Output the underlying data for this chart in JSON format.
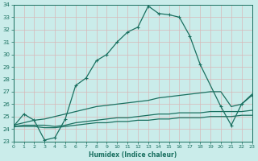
{
  "xlabel": "Humidex (Indice chaleur)",
  "xlim": [
    0,
    23
  ],
  "ylim": [
    23,
    34
  ],
  "xticks": [
    0,
    1,
    2,
    3,
    4,
    5,
    6,
    7,
    8,
    9,
    10,
    11,
    12,
    13,
    14,
    15,
    16,
    17,
    18,
    19,
    20,
    21,
    22,
    23
  ],
  "yticks": [
    23,
    24,
    25,
    26,
    27,
    28,
    29,
    30,
    31,
    32,
    33,
    34
  ],
  "bg_color": "#caecea",
  "line_color": "#1a7060",
  "grid_color": "#b0d8d4",
  "line1_x": [
    0,
    1,
    2,
    3,
    4,
    5,
    6,
    7,
    8,
    9,
    10,
    11,
    12,
    13,
    14,
    15,
    16,
    17,
    18,
    20,
    21,
    22,
    23
  ],
  "line1_y": [
    24.2,
    25.2,
    24.7,
    23.1,
    23.3,
    24.8,
    27.5,
    28.1,
    29.5,
    30.0,
    31.0,
    31.8,
    32.2,
    33.9,
    33.3,
    33.2,
    33.0,
    31.5,
    29.2,
    25.8,
    24.3,
    26.0,
    26.7
  ],
  "line2_x": [
    0,
    1,
    2,
    3,
    4,
    5,
    6,
    7,
    8,
    9,
    10,
    11,
    12,
    13,
    14,
    15,
    16,
    17,
    18,
    19,
    20,
    21,
    22,
    23
  ],
  "line2_y": [
    24.3,
    24.5,
    24.7,
    24.8,
    25.0,
    25.2,
    25.4,
    25.6,
    25.8,
    25.9,
    26.0,
    26.1,
    26.2,
    26.3,
    26.5,
    26.6,
    26.7,
    26.8,
    26.9,
    27.0,
    27.0,
    25.8,
    26.0,
    26.8
  ],
  "line3_x": [
    0,
    1,
    2,
    3,
    4,
    5,
    6,
    7,
    8,
    9,
    10,
    11,
    12,
    13,
    14,
    15,
    16,
    17,
    18,
    19,
    20,
    21,
    22,
    23
  ],
  "line3_y": [
    24.2,
    24.3,
    24.3,
    24.3,
    24.2,
    24.3,
    24.5,
    24.6,
    24.7,
    24.8,
    24.9,
    24.9,
    25.0,
    25.1,
    25.2,
    25.2,
    25.3,
    25.3,
    25.3,
    25.4,
    25.4,
    25.4,
    25.4,
    25.5
  ],
  "line4_x": [
    0,
    1,
    2,
    3,
    4,
    5,
    6,
    7,
    8,
    9,
    10,
    11,
    12,
    13,
    14,
    15,
    16,
    17,
    18,
    19,
    20,
    21,
    22,
    23
  ],
  "line4_y": [
    24.2,
    24.2,
    24.2,
    24.1,
    24.1,
    24.2,
    24.3,
    24.4,
    24.5,
    24.5,
    24.6,
    24.6,
    24.7,
    24.7,
    24.8,
    24.8,
    24.9,
    24.9,
    24.9,
    25.0,
    25.0,
    25.0,
    25.1,
    25.1
  ]
}
